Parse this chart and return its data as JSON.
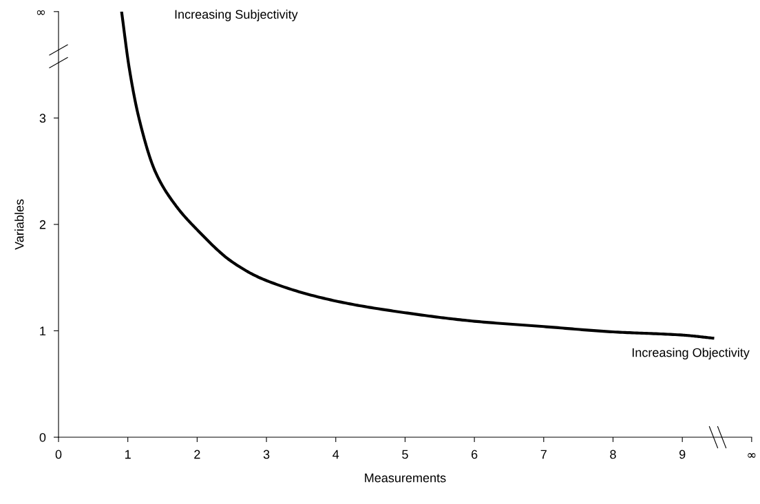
{
  "chart_data": {
    "type": "line",
    "xlabel": "Measurements",
    "ylabel": "Variables",
    "x": [
      0.91,
      1.02,
      1.16,
      1.4,
      1.7,
      2.0,
      2.5,
      2.97,
      4,
      5,
      6,
      7,
      8,
      9,
      9.46
    ],
    "series": [
      {
        "color": "#000000",
        "values": [
          4.0,
          3.47,
          3.0,
          2.49,
          2.17,
          1.95,
          1.65,
          1.48,
          1.28,
          1.17,
          1.09,
          1.04,
          0.99,
          0.96,
          0.93
        ]
      }
    ],
    "xlim": [
      0,
      10
    ],
    "ylim": [
      0,
      4
    ],
    "xticks": [
      0,
      1,
      2,
      3,
      4,
      5,
      6,
      7,
      8,
      9,
      {
        "value": 10,
        "label": "∞"
      }
    ],
    "yticks": [
      0,
      1,
      2,
      3,
      {
        "value": 4,
        "label": "∞"
      }
    ],
    "annotations": [
      "Increasing Subjectivity",
      "Increasing Objectivity"
    ],
    "grid": false,
    "legend": false,
    "marker": "none",
    "line_style": "solid"
  }
}
